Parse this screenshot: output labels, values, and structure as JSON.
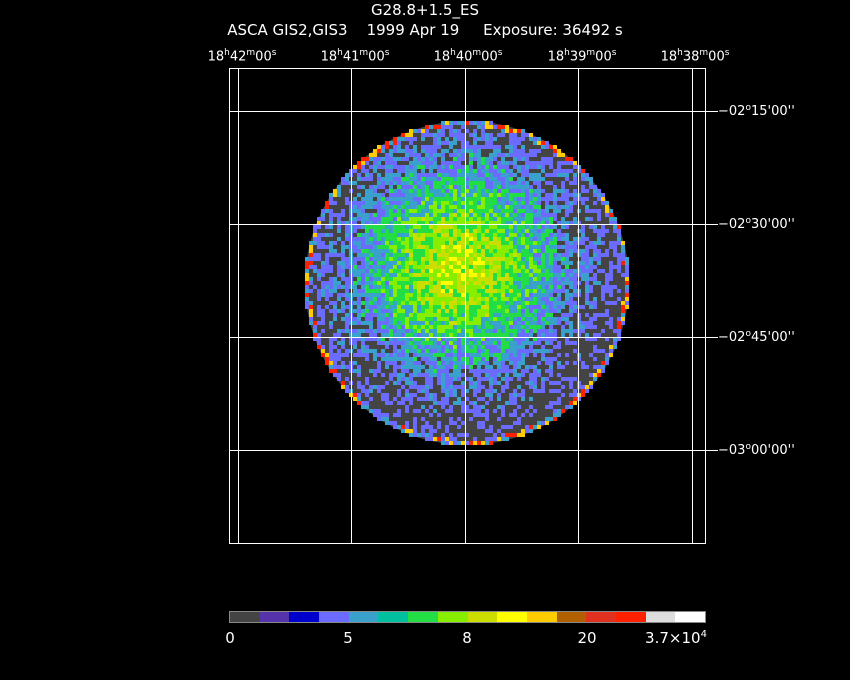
{
  "header": {
    "title": "G28.8+1.5_ES",
    "subtitle": "ASCA GIS2,GIS3    1999 Apr 19     Exposure: 36492 s"
  },
  "ra_ticks": [
    {
      "h": "18",
      "m": "42",
      "s": "00"
    },
    {
      "h": "18",
      "m": "41",
      "s": "00"
    },
    {
      "h": "18",
      "m": "40",
      "s": "00"
    },
    {
      "h": "18",
      "m": "39",
      "s": "00"
    },
    {
      "h": "18",
      "m": "38",
      "s": "00"
    }
  ],
  "ra_units": {
    "h": "h",
    "m": "m",
    "s": "s"
  },
  "dec_ticks": [
    {
      "sign": "−",
      "deg": "02",
      "min": "15",
      "sec": "00"
    },
    {
      "sign": "−",
      "deg": "02",
      "min": "30",
      "sec": "00"
    },
    {
      "sign": "−",
      "deg": "02",
      "min": "45",
      "sec": "00"
    },
    {
      "sign": "−",
      "deg": "03",
      "min": "00",
      "sec": "00"
    }
  ],
  "dec_units": {
    "deg": "o",
    "min": "'",
    "sec": "''"
  },
  "colorbar": {
    "colors": [
      "#444444",
      "#5533aa",
      "#0000cc",
      "#6b6bff",
      "#3aa0cc",
      "#00c0a0",
      "#22dd44",
      "#88ee00",
      "#ccdd00",
      "#ffff00",
      "#ffcc00",
      "#b06000",
      "#e03020",
      "#ff2000",
      "#dddddd",
      "#ffffff"
    ],
    "labels": [
      "0",
      "5",
      "8",
      "20"
    ],
    "max_label_base": "3.7×10",
    "max_label_exp": "4"
  },
  "image": {
    "background_color": "#444444",
    "palette": [
      "#444444",
      "#6b6bff",
      "#3aa0cc",
      "#22dd44",
      "#88ee00",
      "#ccdd00",
      "#ffff00",
      "#ffcc00",
      "#b06000"
    ],
    "edge_colors": [
      "#ff2000",
      "#ffcc00",
      "#3aa0cc",
      "#6b6bff"
    ]
  }
}
